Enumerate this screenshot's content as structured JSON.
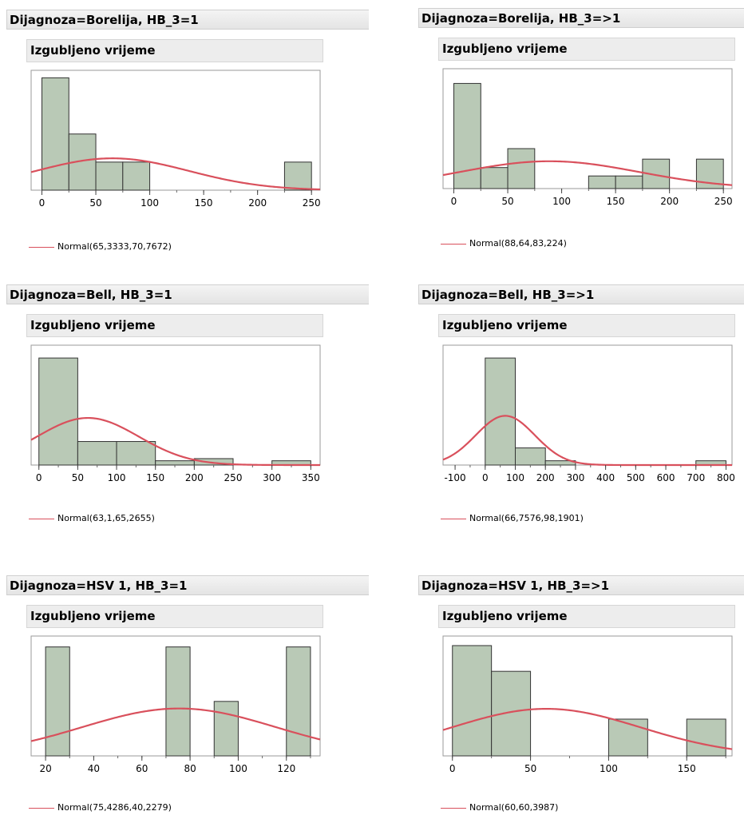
{
  "colors": {
    "bar_fill": "#b9c9b6",
    "bar_stroke": "#333333",
    "curve": "#d9505c",
    "frame": "#9a9a9a"
  },
  "chart_data": [
    {
      "type": "bar",
      "title": "Dijagnoza=Borelija, HB_3=1",
      "subtitle": "Izgubljeno vrijeme",
      "xlim": [
        -10,
        258
      ],
      "ylim": [
        0,
        6.4
      ],
      "xticks": [
        0,
        50,
        100,
        150,
        200,
        250
      ],
      "minor_step": 25,
      "bins": [
        {
          "x0": 0,
          "x1": 25,
          "count": 6
        },
        {
          "x0": 25,
          "x1": 50,
          "count": 3
        },
        {
          "x0": 50,
          "x1": 75,
          "count": 1.5
        },
        {
          "x0": 75,
          "x1": 100,
          "count": 1.5
        },
        {
          "x0": 225,
          "x1": 250,
          "count": 1.5
        }
      ],
      "normal": {
        "mean": 65.3333,
        "sd": 70.7672,
        "peak": 1.7
      },
      "legend": "Normal(65,3333,70,7672)"
    },
    {
      "type": "bar",
      "title": "Dijagnoza=Borelija, HB_3=>1",
      "subtitle": "Izgubljeno vrijeme",
      "xlim": [
        -10,
        258
      ],
      "ylim": [
        0,
        5.7
      ],
      "xticks": [
        0,
        50,
        100,
        150,
        200,
        250
      ],
      "minor_step": 25,
      "bins": [
        {
          "x0": 0,
          "x1": 25,
          "count": 5
        },
        {
          "x0": 25,
          "x1": 50,
          "count": 1
        },
        {
          "x0": 50,
          "x1": 75,
          "count": 1.9
        },
        {
          "x0": 125,
          "x1": 150,
          "count": 0.6
        },
        {
          "x0": 150,
          "x1": 175,
          "count": 0.6
        },
        {
          "x0": 175,
          "x1": 200,
          "count": 1.4
        },
        {
          "x0": 225,
          "x1": 250,
          "count": 1.4
        }
      ],
      "normal": {
        "mean": 88.64,
        "sd": 83.224,
        "peak": 1.3
      },
      "legend": "Normal(88,64,83,224)"
    },
    {
      "type": "bar",
      "title": "Dijagnoza=Bell, HB_3=1",
      "subtitle": "Izgubljeno vrijeme",
      "xlim": [
        -10,
        362
      ],
      "ylim": [
        0,
        5.6
      ],
      "xticks": [
        0,
        50,
        100,
        150,
        200,
        250,
        300,
        350
      ],
      "minor_step": 25,
      "bins": [
        {
          "x0": 0,
          "x1": 50,
          "count": 5
        },
        {
          "x0": 50,
          "x1": 100,
          "count": 1.1
        },
        {
          "x0": 100,
          "x1": 150,
          "count": 1.1
        },
        {
          "x0": 150,
          "x1": 200,
          "count": 0.2
        },
        {
          "x0": 200,
          "x1": 250,
          "count": 0.3
        },
        {
          "x0": 300,
          "x1": 350,
          "count": 0.2
        }
      ],
      "normal": {
        "mean": 63.1,
        "sd": 65.2655,
        "peak": 2.2
      },
      "legend": "Normal(63,1,65,2655)"
    },
    {
      "type": "bar",
      "title": "Dijagnoza=Bell, HB_3=>1",
      "subtitle": "Izgubljeno vrijeme",
      "xlim": [
        -140,
        820
      ],
      "ylim": [
        0,
        5.6
      ],
      "xticks": [
        -100,
        0,
        100,
        200,
        300,
        400,
        500,
        600,
        700,
        800
      ],
      "minor_step": 50,
      "bins": [
        {
          "x0": 0,
          "x1": 100,
          "count": 5
        },
        {
          "x0": 100,
          "x1": 200,
          "count": 0.8
        },
        {
          "x0": 200,
          "x1": 300,
          "count": 0.2
        },
        {
          "x0": 700,
          "x1": 800,
          "count": 0.2
        }
      ],
      "normal": {
        "mean": 66.7576,
        "sd": 98.1901,
        "peak": 2.3
      },
      "legend": "Normal(66,7576,98,1901)"
    },
    {
      "type": "bar",
      "title": "Dijagnoza=HSV 1, HB_3=1",
      "subtitle": "Izgubljeno vrijeme",
      "xlim": [
        14,
        134
      ],
      "ylim": [
        0,
        2.2
      ],
      "xticks": [
        20,
        40,
        60,
        80,
        100,
        120
      ],
      "minor_step": 10,
      "bins": [
        {
          "x0": 20,
          "x1": 30,
          "count": 2
        },
        {
          "x0": 70,
          "x1": 80,
          "count": 2
        },
        {
          "x0": 90,
          "x1": 100,
          "count": 1
        },
        {
          "x0": 120,
          "x1": 130,
          "count": 2
        }
      ],
      "normal": {
        "mean": 75.4286,
        "sd": 40.2279,
        "peak": 0.87
      },
      "legend": "Normal(75,4286,40,2279)"
    },
    {
      "type": "bar",
      "title": "Dijagnoza=HSV 1, HB_3=>1",
      "subtitle": "Izgubljeno vrijeme",
      "xlim": [
        -6,
        179
      ],
      "ylim": [
        0,
        3.26
      ],
      "xticks": [
        0,
        50,
        100,
        150
      ],
      "minor_step": 25,
      "bins": [
        {
          "x0": 0,
          "x1": 25,
          "count": 3
        },
        {
          "x0": 25,
          "x1": 50,
          "count": 2.3
        },
        {
          "x0": 100,
          "x1": 125,
          "count": 1
        },
        {
          "x0": 150,
          "x1": 175,
          "count": 1
        }
      ],
      "normal": {
        "mean": 60,
        "sd": 60.3987,
        "peak": 1.28
      },
      "legend": "Normal(60,60,3987)"
    }
  ]
}
